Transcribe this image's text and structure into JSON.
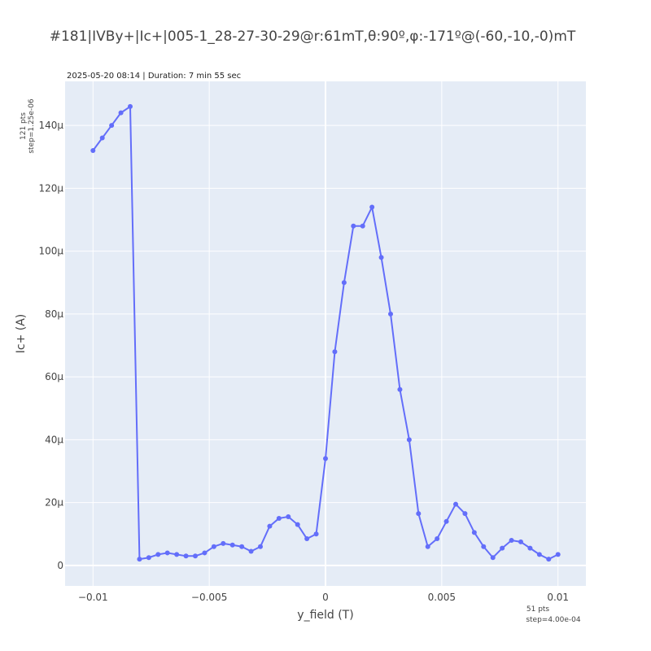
{
  "chart_data": {
    "type": "line",
    "title": "#181|IVBy+|Ic+|005-1_28-27-30-29@r:61mT,θ:90º,φ:-171º@(-60,-10,-0)mT",
    "subtitle": "2025-05-20 08:14 | Duration: 7 min 55 sec",
    "xlabel": "y_field (T)",
    "ylabel": "Ic+ (A)",
    "y_annotation": [
      "121 pts",
      "step=1.25e-06"
    ],
    "x_annotation": [
      "51 pts",
      "step=4.00e-04"
    ],
    "xlim": [
      -0.0112,
      0.0112
    ],
    "ylim": [
      -6.5,
      154
    ],
    "x_ticks": [
      -0.01,
      -0.005,
      0,
      0.005,
      0.01
    ],
    "x_tick_labels": [
      "−0.01",
      "−0.005",
      "0",
      "0.005",
      "0.01"
    ],
    "y_ticks": [
      0,
      20,
      40,
      60,
      80,
      100,
      120,
      140
    ],
    "y_tick_labels": [
      "0",
      "20μ",
      "40μ",
      "60μ",
      "80μ",
      "100μ",
      "120μ",
      "140μ"
    ],
    "y_unit_scale": "μA",
    "grid": true,
    "line_color": "#636efa",
    "plot_bg": "#e5ecf6",
    "series": [
      {
        "x": [
          -0.01,
          -0.0096,
          -0.0092,
          -0.0088,
          -0.0084,
          -0.008,
          -0.0076,
          -0.0072,
          -0.0068,
          -0.0064,
          -0.006,
          -0.0056,
          -0.0052,
          -0.0048,
          -0.0044,
          -0.004,
          -0.0036,
          -0.0032,
          -0.0028,
          -0.0024,
          -0.002,
          -0.0016,
          -0.0012,
          -0.0008,
          -0.0004,
          0.0,
          0.0004,
          0.0008,
          0.0012,
          0.0016,
          0.002,
          0.0024,
          0.0028,
          0.0032,
          0.0036,
          0.004,
          0.0044,
          0.0048,
          0.0052,
          0.0056,
          0.006,
          0.0064,
          0.0068,
          0.0072,
          0.0076,
          0.008,
          0.0084,
          0.0088,
          0.0092,
          0.0096,
          0.01
        ],
        "y": [
          132,
          136,
          140,
          144,
          146,
          2,
          2.5,
          3.5,
          4,
          3.5,
          3,
          3,
          4,
          6,
          7,
          6.5,
          6,
          4.5,
          6,
          12.5,
          15,
          15.5,
          13,
          8.5,
          10,
          34,
          68,
          90,
          108,
          108,
          114,
          98,
          80,
          56,
          40,
          16.5,
          6,
          8.5,
          14,
          19.5,
          16.5,
          10.5,
          6,
          2.5,
          5.5,
          8,
          7.5,
          5.5,
          3.5,
          2,
          3.5
        ]
      }
    ]
  }
}
